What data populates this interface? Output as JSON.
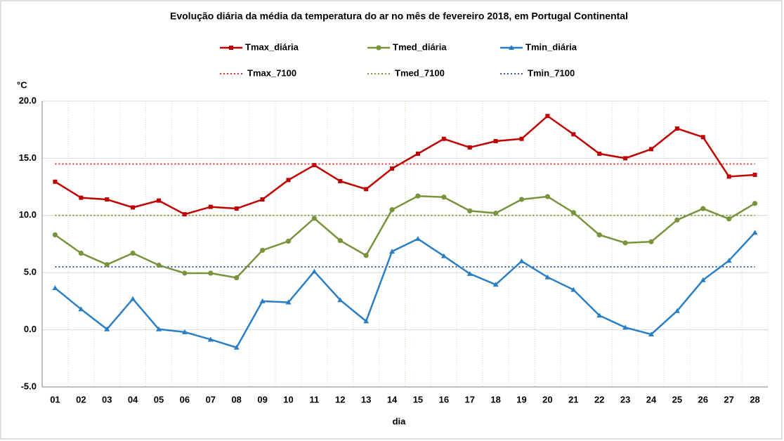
{
  "chart_data": {
    "type": "line",
    "title": "Evolução diária da média da temperatura do ar no mês de fevereiro 2018, em Portugal Continental",
    "y_label": "°C",
    "x_label": "dia",
    "categories": [
      "01",
      "02",
      "03",
      "04",
      "05",
      "06",
      "07",
      "08",
      "09",
      "10",
      "11",
      "12",
      "13",
      "14",
      "15",
      "16",
      "17",
      "18",
      "19",
      "20",
      "21",
      "22",
      "23",
      "24",
      "25",
      "26",
      "27",
      "28"
    ],
    "series": [
      {
        "name": "Tmax_diária",
        "color": "#c00000",
        "marker": "square",
        "values": [
          12.95,
          11.55,
          11.4,
          10.7,
          11.3,
          10.1,
          10.75,
          10.6,
          11.4,
          13.1,
          14.4,
          13.0,
          12.3,
          14.1,
          15.4,
          16.7,
          15.95,
          16.5,
          16.7,
          18.7,
          17.1,
          15.4,
          15.0,
          15.8,
          17.6,
          16.85,
          13.4,
          13.55
        ]
      },
      {
        "name": "Tmed_diária",
        "color": "#77933c",
        "marker": "circle",
        "values": [
          8.3,
          6.7,
          5.7,
          6.7,
          5.65,
          4.95,
          4.95,
          4.55,
          6.95,
          7.75,
          9.75,
          7.8,
          6.5,
          10.5,
          11.7,
          11.6,
          10.4,
          10.2,
          11.4,
          11.65,
          10.25,
          8.3,
          7.6,
          7.7,
          9.6,
          10.6,
          9.7,
          11.05
        ]
      },
      {
        "name": "Tmin_diária",
        "color": "#2a7fc4",
        "marker": "triangle",
        "values": [
          3.65,
          1.8,
          0.05,
          2.7,
          0.05,
          -0.2,
          -0.85,
          -1.55,
          2.5,
          2.4,
          5.1,
          2.6,
          0.75,
          6.85,
          7.95,
          6.45,
          4.9,
          3.95,
          6.0,
          4.6,
          3.5,
          1.25,
          0.2,
          -0.4,
          1.65,
          4.35,
          6.05,
          8.5
        ]
      }
    ],
    "reference_lines": [
      {
        "name": "Tmax_7100",
        "color": "#e0302a",
        "value": 14.5
      },
      {
        "name": "Tmed_7100",
        "color": "#7a9a3a",
        "value": 10.0
      },
      {
        "name": "Tmin_7100",
        "color": "#3a5aa8",
        "value": 5.5
      }
    ],
    "ylim": [
      -5,
      20
    ],
    "yticks": [
      {
        "value": -5,
        "label": "-5.0"
      },
      {
        "value": 0,
        "label": "0.0"
      },
      {
        "value": 5,
        "label": "5.0"
      },
      {
        "value": 10,
        "label": "10.0"
      },
      {
        "value": 15,
        "label": "15.0"
      },
      {
        "value": 20,
        "label": "20.0"
      }
    ],
    "grid": true
  }
}
